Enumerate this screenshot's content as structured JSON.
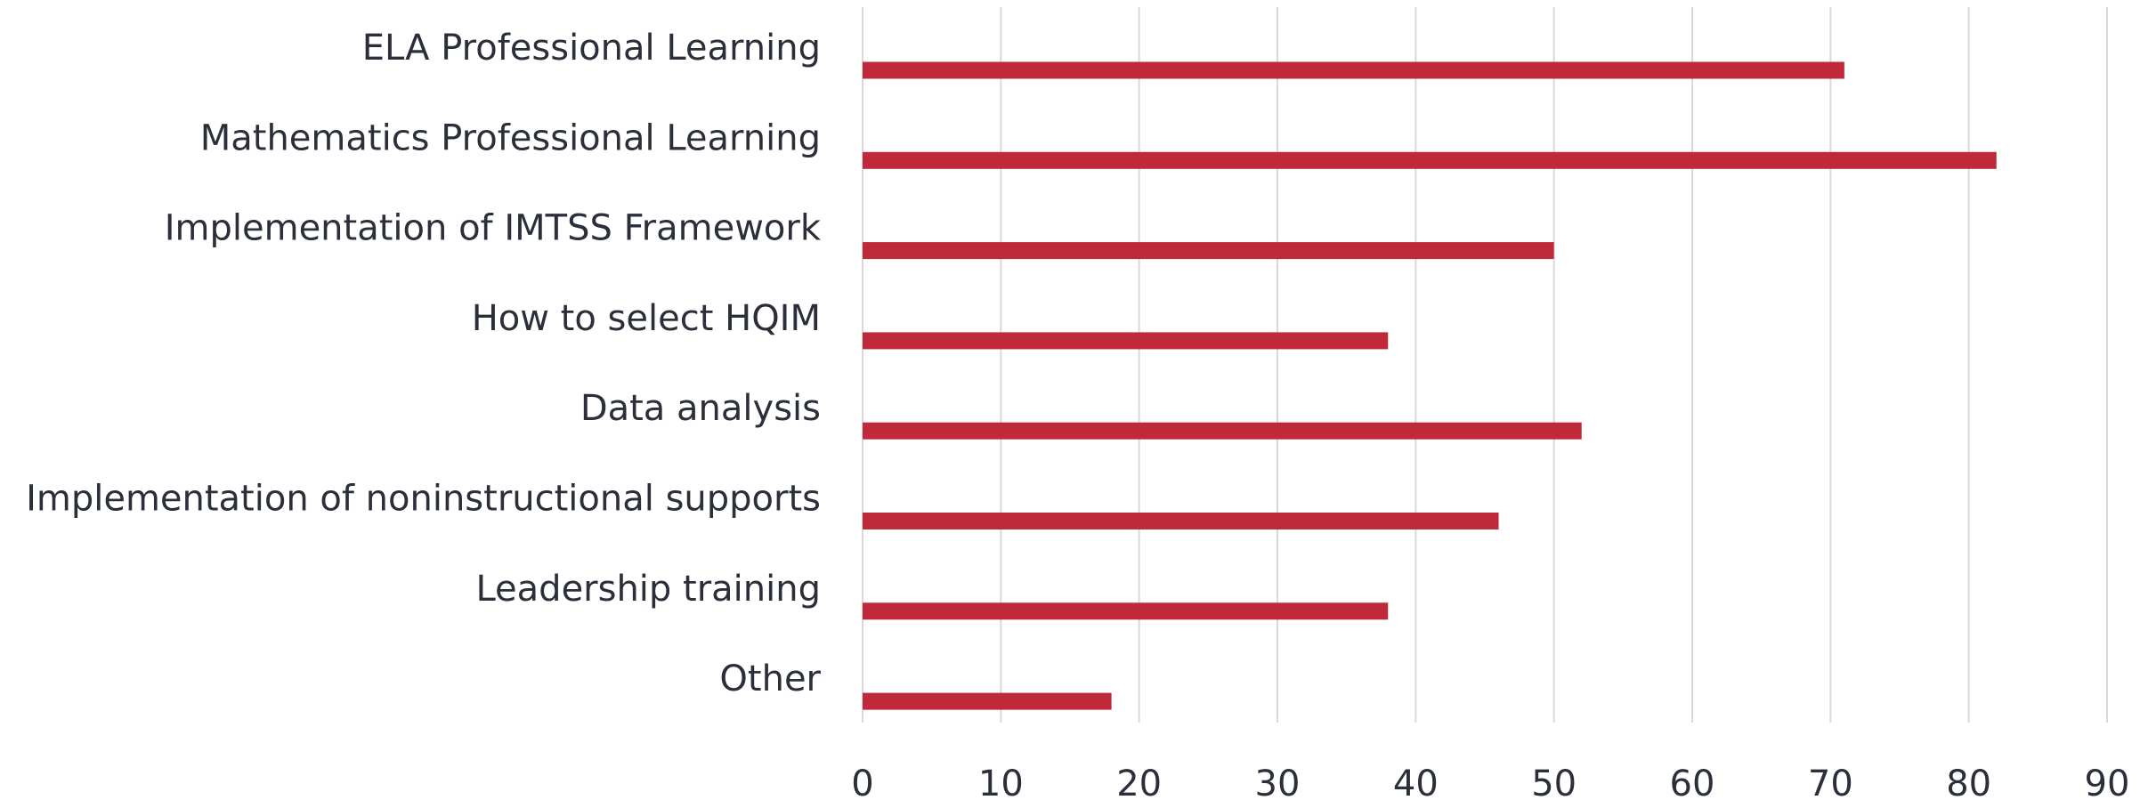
{
  "chart_data": {
    "type": "bar",
    "orientation": "horizontal",
    "categories": [
      "ELA Professional Learning",
      "Mathematics Professional Learning",
      "Implementation of IMTSS Framework",
      "How to select HQIM",
      "Data analysis",
      "Implementation of noninstructional supports",
      "Leadership training",
      "Other"
    ],
    "values": [
      71,
      82,
      50,
      38,
      52,
      46,
      38,
      18
    ],
    "color": "#c0293a",
    "xlim": [
      0,
      90
    ],
    "xticks": [
      0,
      10,
      20,
      30,
      40,
      50,
      60,
      70,
      80,
      90
    ],
    "grid": true
  }
}
